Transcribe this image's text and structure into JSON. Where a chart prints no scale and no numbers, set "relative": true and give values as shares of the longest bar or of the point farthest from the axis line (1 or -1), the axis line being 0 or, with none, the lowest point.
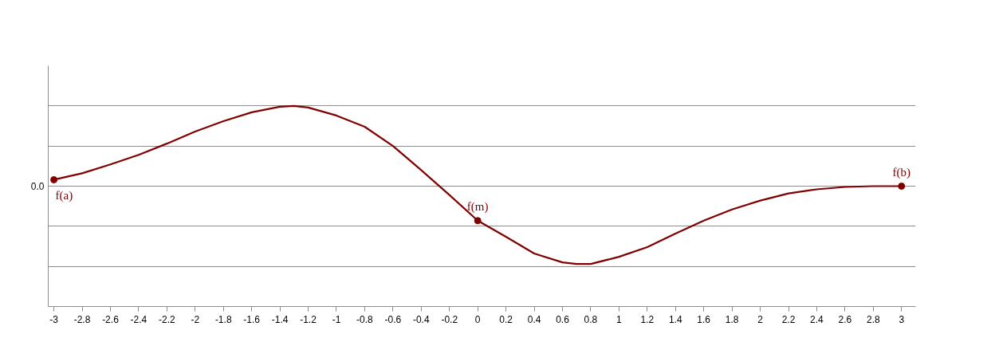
{
  "chart_data": {
    "type": "line",
    "relative": true,
    "x": [
      -3,
      -2.8,
      -2.6,
      -2.4,
      -2.2,
      -2,
      -1.8,
      -1.6,
      -1.4,
      -1.3,
      -1.2,
      -1,
      -0.8,
      -0.6,
      -0.4,
      -0.2,
      0,
      0.2,
      0.4,
      0.6,
      0.7,
      0.8,
      1,
      1.2,
      1.4,
      1.6,
      1.8,
      2,
      2.2,
      2.4,
      2.6,
      2.8,
      3
    ],
    "series": [
      {
        "color": "#800000",
        "values": [
          0.08,
          0.16,
          0.27,
          0.39,
          0.53,
          0.68,
          0.81,
          0.92,
          0.99,
          1,
          0.98,
          0.88,
          0.74,
          0.5,
          0.2,
          -0.11,
          -0.43,
          -0.63,
          -0.84,
          -0.95,
          -0.97,
          -0.97,
          -0.88,
          -0.76,
          -0.59,
          -0.43,
          -0.29,
          -0.18,
          -0.09,
          -0.04,
          -0.01,
          0,
          0
        ]
      },
      {
        "type": "scatter",
        "color": "#800000",
        "marker": "circle",
        "x": [
          -3,
          0,
          3
        ],
        "values": [
          0.08,
          -0.43,
          0
        ]
      }
    ],
    "xlim": [
      -3.04,
      3.1
    ],
    "xticks": [
      -3,
      -2.8,
      -2.6,
      -2.4,
      -2.2,
      -2,
      -1.8,
      -1.6,
      -1.4,
      -1.2,
      -1,
      -0.8,
      -0.6,
      -0.4,
      -0.2,
      0,
      0.2,
      0.4,
      0.6,
      0.8,
      1,
      1.2,
      1.4,
      1.6,
      1.8,
      2,
      2.2,
      2.4,
      2.6,
      2.8,
      3
    ],
    "grid": "y",
    "line_style": "solid",
    "annotations": [
      "0.0",
      {
        "text": "f(a)",
        "x": -3,
        "y": 0.08
      },
      {
        "text": "f(m)",
        "x": 0,
        "y": -0.43
      },
      {
        "text": "f(b)",
        "x": 3,
        "y": 0
      }
    ]
  }
}
